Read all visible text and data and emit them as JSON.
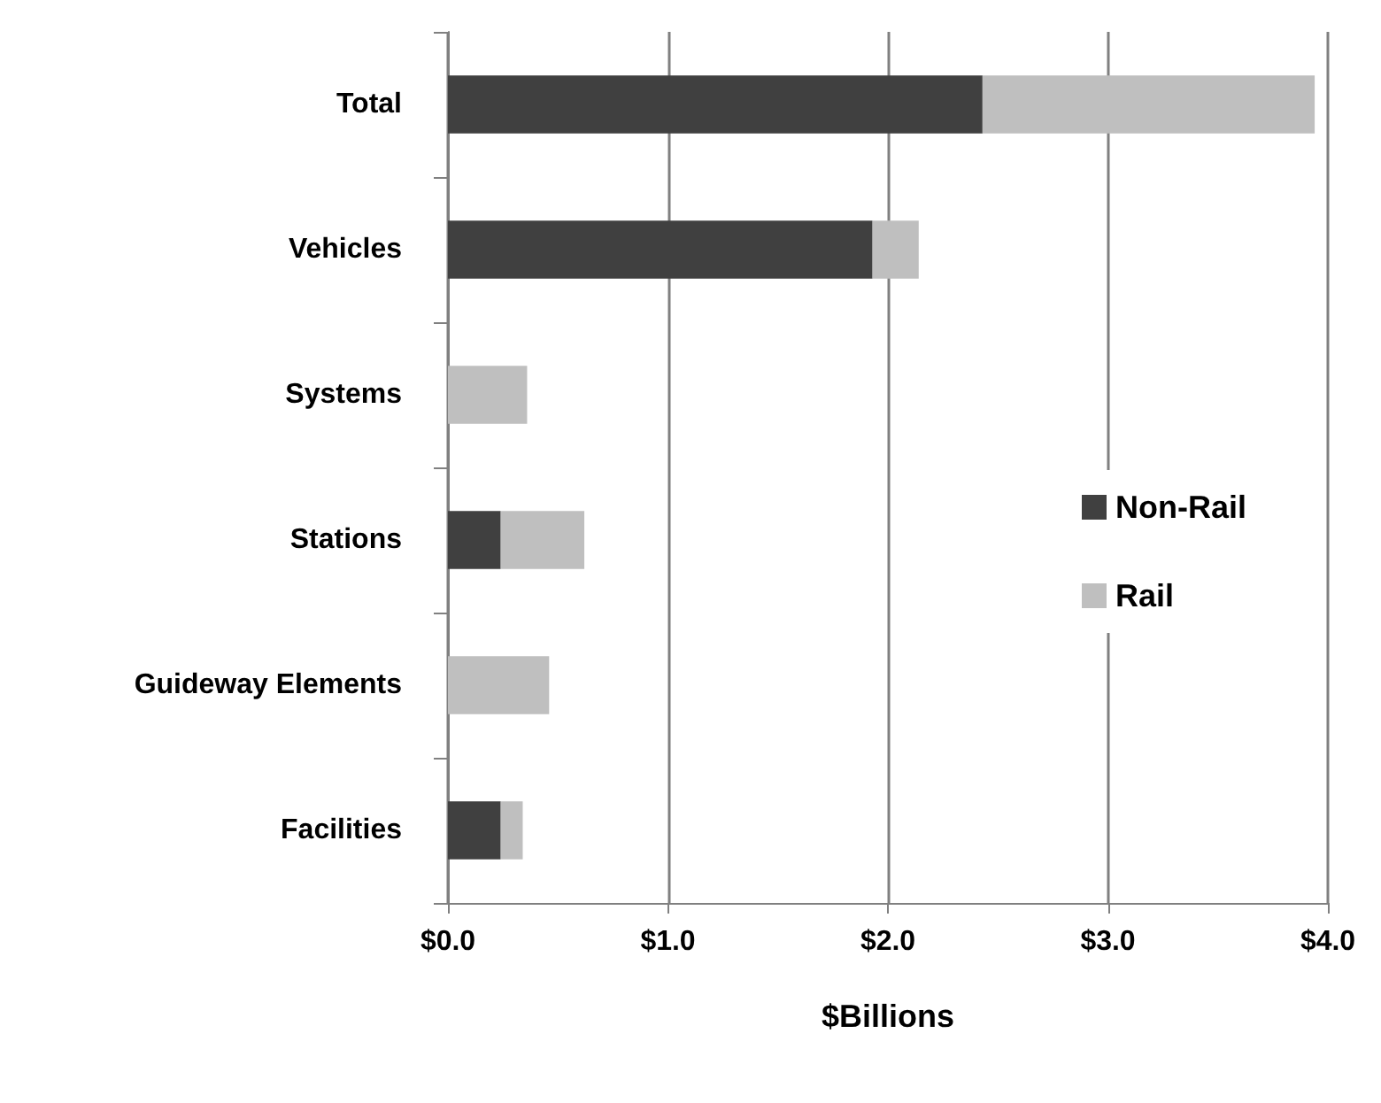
{
  "chart_data": {
    "type": "bar",
    "orientation": "horizontal",
    "stacked": true,
    "categories": [
      "Total",
      "Vehicles",
      "Systems",
      "Stations",
      "Guideway Elements",
      "Facilities"
    ],
    "series": [
      {
        "name": "Non-Rail",
        "color": "#404040",
        "values": [
          2.43,
          1.93,
          0,
          0.24,
          0,
          0.24
        ]
      },
      {
        "name": "Rail",
        "color": "#bfbfbf",
        "values": [
          1.51,
          0.21,
          0.36,
          0.38,
          0.46,
          0.1
        ]
      }
    ],
    "xlabel": "$Billions",
    "xlim": [
      0,
      4
    ],
    "xticks": [
      {
        "value": 0,
        "label": "$0.0"
      },
      {
        "value": 1,
        "label": "$1.0"
      },
      {
        "value": 2,
        "label": "$2.0"
      },
      {
        "value": 3,
        "label": "$3.0"
      },
      {
        "value": 4,
        "label": "$4.0"
      }
    ],
    "grid": "x",
    "legend": "right"
  }
}
